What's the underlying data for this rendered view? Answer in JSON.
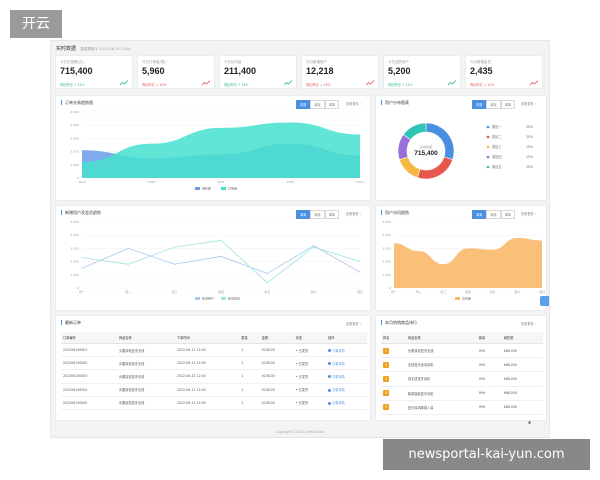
{
  "brand": {
    "text": "开云"
  },
  "header": {
    "title": "实时数据",
    "subtitle": "数据更新于 2022-06-15 12:00"
  },
  "stats": [
    {
      "label": "今日交易额(元)",
      "value": "715,400",
      "change": "同比昨日 ↑ 12%",
      "trend": "up",
      "color": "#2bb673"
    },
    {
      "label": "今日订单量(笔)",
      "value": "5,960",
      "change": "同比昨日 ↓ 10%",
      "trend": "down",
      "color": "#e55353"
    },
    {
      "label": "今日访问量",
      "value": "211,400",
      "change": "同比昨日 ↑ 14%",
      "trend": "up",
      "color": "#2bb673"
    },
    {
      "label": "今日新增用户",
      "value": "12,218",
      "change": "同比昨日 ↓ 13%",
      "trend": "down",
      "color": "#e55353"
    },
    {
      "label": "今日活跃用户",
      "value": "5,200",
      "change": "同比昨日 ↑ 14%",
      "trend": "up",
      "color": "#2bb673"
    },
    {
      "label": "今日新增会员",
      "value": "2,435",
      "change": "同比昨日 ↓ 12%",
      "trend": "down",
      "color": "#e55353"
    }
  ],
  "tabs": [
    "本周",
    "本月",
    "本年"
  ],
  "more_label": "查看更多 ›",
  "panels": {
    "area": {
      "title": "订单交易趋势图"
    },
    "donut": {
      "title": "用户分布图表"
    },
    "line": {
      "title": "新增用户及会员趋势"
    },
    "bararea": {
      "title": "用户访问趋势"
    },
    "orders": {
      "title": "最新订单"
    },
    "ranking": {
      "title": "本月热销商品排行"
    }
  },
  "footer": "Copyright © 2022 Admin Data",
  "scroll_top": "▲",
  "watermark": "newsportal-kai-yun.com",
  "chart_data": [
    {
      "type": "area",
      "categories": [
        "2019",
        "2020",
        "2021",
        "2022",
        "2023"
      ],
      "yticks": [
        "5,000",
        "4,000",
        "3,000",
        "2,000",
        "1,000",
        "0"
      ],
      "ylim": [
        0,
        5000
      ],
      "series": [
        {
          "name": "销售额",
          "color": "#6b9de8",
          "values": [
            2100,
            1500,
            1800,
            2600,
            1700
          ]
        },
        {
          "name": "订单量",
          "color": "#45e0cf",
          "values": [
            1200,
            2600,
            3800,
            4200,
            3300
          ]
        }
      ],
      "legend": "bottom"
    },
    {
      "type": "pie",
      "center_label": "总销售额",
      "center_value": "715,400",
      "slices": [
        {
          "name": "类目一",
          "value": 30,
          "label": "30%",
          "color": "#4a90e2"
        },
        {
          "name": "类目二",
          "value": 25,
          "label": "25%",
          "color": "#e8574b"
        },
        {
          "name": "类目三",
          "value": 15,
          "label": "15%",
          "color": "#f5b841"
        },
        {
          "name": "类目四",
          "value": 15,
          "label": "15%",
          "color": "#9b6fd9"
        },
        {
          "name": "类目五",
          "value": 15,
          "label": "15%",
          "color": "#2ec4b6"
        }
      ],
      "legend": "right"
    },
    {
      "type": "line",
      "categories": [
        "周一",
        "周二",
        "周三",
        "周四",
        "周五",
        "周六",
        "周日"
      ],
      "yticks": [
        "5,000",
        "4,000",
        "3,000",
        "2,000",
        "1,000",
        "0"
      ],
      "ylim": [
        0,
        5000
      ],
      "series": [
        {
          "name": "新增用户",
          "color": "#a8c8ee",
          "values": [
            1500,
            3000,
            1800,
            2400,
            1100,
            3200,
            1200
          ]
        },
        {
          "name": "新增会员",
          "color": "#9fe5db",
          "values": [
            2300,
            1800,
            3100,
            3600,
            400,
            3100,
            2000
          ]
        }
      ],
      "legend": "bottom"
    },
    {
      "type": "area",
      "categories": [
        "周一",
        "周二",
        "周三",
        "周四",
        "周五",
        "周六",
        "周日"
      ],
      "yticks": [
        "5,000",
        "4,000",
        "3,000",
        "2,000",
        "1,000",
        "0"
      ],
      "ylim": [
        0,
        5000
      ],
      "series": [
        {
          "name": "访问量",
          "color": "#f9b96b",
          "values": [
            3400,
            2800,
            1800,
            3000,
            2900,
            3800,
            3600
          ]
        }
      ],
      "legend": "bottom"
    }
  ],
  "orders": {
    "columns": [
      "订单编号",
      "商品名称",
      "下单时间",
      "数量",
      "金额",
      "状态",
      "操作"
    ],
    "rows": [
      [
        "202206150001",
        "头戴耳机蓝牙无线",
        "2022-06-15 12:00",
        "1",
        "¥238.00",
        "• 已发货",
        "订单详情"
      ],
      [
        "202206150002",
        "头戴耳机蓝牙无线",
        "2022-06-15 12:00",
        "1",
        "¥238.00",
        "• 已发货",
        "订单详情"
      ],
      [
        "202206150003",
        "头戴耳机蓝牙无线",
        "2022-06-15 12:00",
        "1",
        "¥238.00",
        "• 已发货",
        "订单详情"
      ],
      [
        "202206150004",
        "头戴耳机蓝牙无线",
        "2022-06-15 12:00",
        "1",
        "¥238.00",
        "• 已发货",
        "订单详情"
      ],
      [
        "202206150005",
        "头戴耳机蓝牙无线",
        "2022-06-15 12:00",
        "1",
        "¥238.00",
        "• 已发货",
        "订单详情"
      ]
    ]
  },
  "ranking": {
    "columns": [
      "排名",
      "商品名称",
      "销量",
      "销售额"
    ],
    "rows": [
      [
        "1",
        "头戴耳机蓝牙无线",
        "999",
        "¥88,000"
      ],
      [
        "2",
        "无线蓝牙运动耳机",
        "999",
        "¥88,000"
      ],
      [
        "3",
        "真无线蓝牙耳机",
        "999",
        "¥88,000"
      ],
      [
        "4",
        "新款智能蓝牙耳机",
        "999",
        "¥88,000"
      ],
      [
        "5",
        "蓝牙耳机降噪入耳",
        "999",
        "¥88,000"
      ]
    ]
  }
}
